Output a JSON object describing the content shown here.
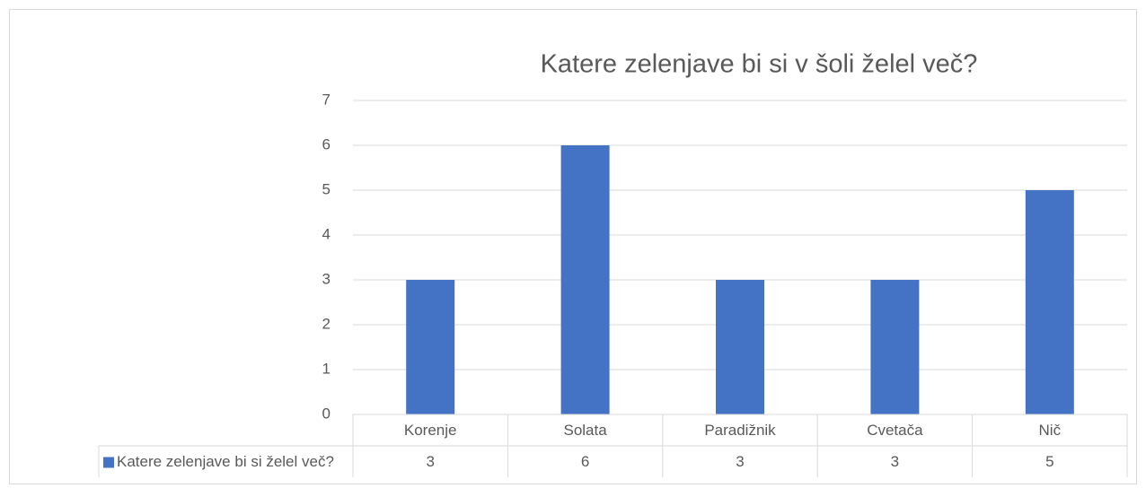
{
  "chart_data": {
    "type": "bar",
    "title": "Katere zelenjave bi si v šoli želel več?",
    "categories": [
      "Korenje",
      "Solata",
      "Paradižnik",
      "Cvetača",
      "Nič"
    ],
    "series": [
      {
        "name": "Katere zelenjave bi si želel več?",
        "color": "#4472c4",
        "values": [
          3,
          6,
          3,
          3,
          5
        ]
      }
    ],
    "ylim": [
      0,
      7
    ],
    "yticks": [
      0,
      1,
      2,
      3,
      4,
      5,
      6,
      7
    ],
    "grid": true,
    "data_table": true
  }
}
